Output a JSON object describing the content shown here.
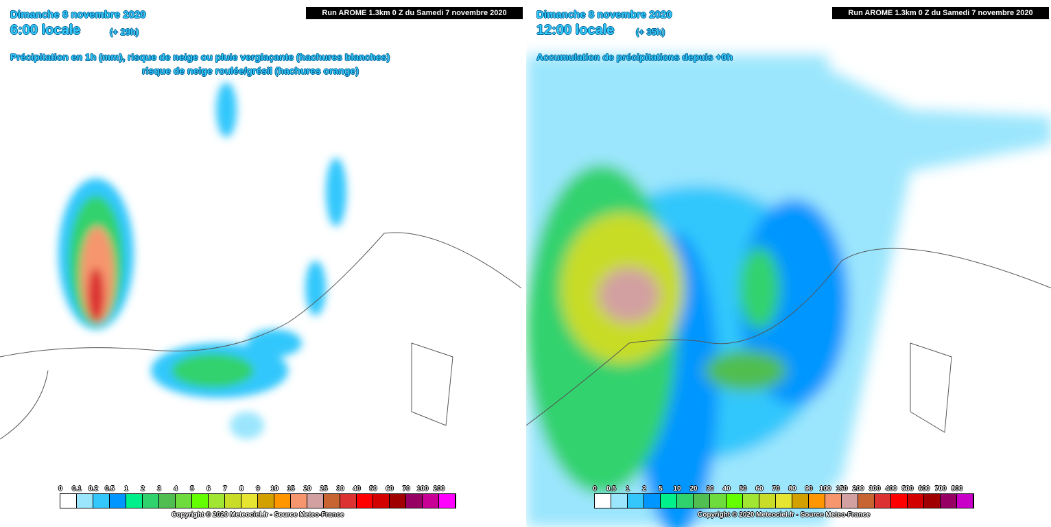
{
  "panels": [
    {
      "date": "Dimanche 8 novembre 2020",
      "time": "6:00 locale",
      "lead": "(+ 29h)",
      "run": "Run AROME 1.3km 0 Z du Samedi 7 novembre 2020",
      "title_lines": [
        "Précipitation en 1h (mm), risque de neige ou pluie verglaçante (hachures blanches)",
        "risque de neige roulée/grésil (hachures orange)"
      ],
      "legend": {
        "labels": [
          "0",
          "0.1",
          "0.2",
          "0.5",
          "1",
          "2",
          "3",
          "4",
          "5",
          "6",
          "7",
          "8",
          "9",
          "10",
          "15",
          "20",
          "25",
          "30",
          "40",
          "50",
          "60",
          "70",
          "100",
          "200"
        ],
        "colors": [
          "#ffffff",
          "#9be6fd",
          "#33c7fc",
          "#0096ff",
          "#00f08c",
          "#30d26e",
          "#50be50",
          "#6edc3c",
          "#64ff00",
          "#a0e632",
          "#c8dc28",
          "#e6e632",
          "#d2a000",
          "#ff9600",
          "#f6966e",
          "#d2a0a0",
          "#c86432",
          "#dc3232",
          "#ff0000",
          "#d20000",
          "#a00000",
          "#960064",
          "#c80096",
          "#ff00ff"
        ]
      },
      "copyright": "Copyright © 2020 Meteociel.fr - Source Meteo-France"
    },
    {
      "date": "Dimanche 8 novembre 2020",
      "time": "12:00 locale",
      "lead": "(+ 35h)",
      "run": "Run AROME 1.3km 0 Z du Samedi 7 novembre 2020",
      "title_lines": [
        "Accumulation de précipitations depuis +0h"
      ],
      "legend": {
        "labels": [
          "0",
          "0.5",
          "1",
          "2",
          "5",
          "10",
          "20",
          "30",
          "40",
          "50",
          "60",
          "70",
          "80",
          "90",
          "100",
          "150",
          "200",
          "300",
          "400",
          "500",
          "600",
          "700",
          "800"
        ],
        "colors": [
          "#ffffff",
          "#9be6fd",
          "#33c7fc",
          "#0096ff",
          "#00f08c",
          "#30d26e",
          "#50be50",
          "#6edc3c",
          "#64ff00",
          "#a0e632",
          "#c8dc28",
          "#e6e632",
          "#d2a000",
          "#ff9600",
          "#f6966e",
          "#d2a0a0",
          "#c86432",
          "#dc3232",
          "#ff0000",
          "#d20000",
          "#a00000",
          "#960064",
          "#c800c8"
        ]
      },
      "copyright": "Copyright © 2020 Meteociel.fr - Source Meteo-France"
    }
  ]
}
